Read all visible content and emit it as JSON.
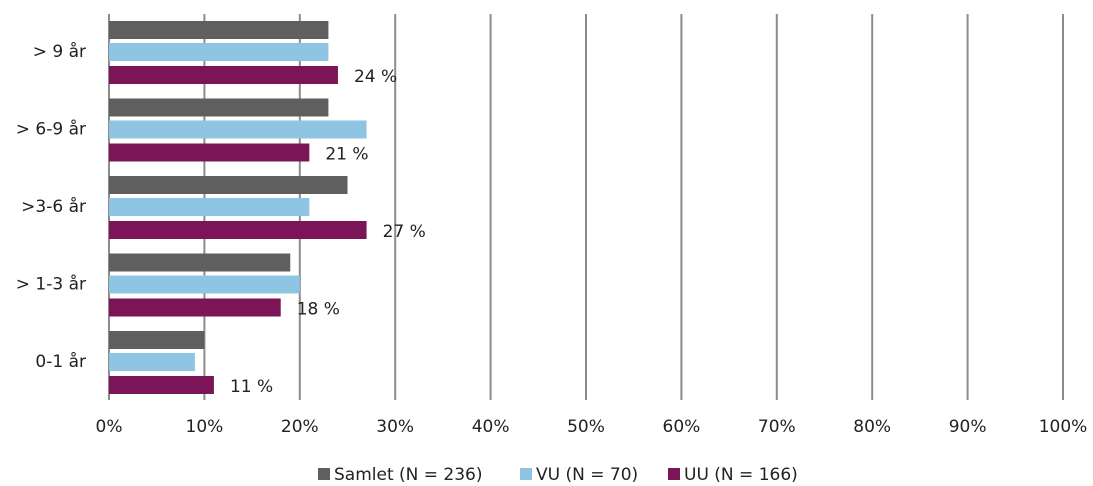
{
  "chart_data": {
    "type": "bar",
    "orientation": "horizontal",
    "categories": [
      "> 9 år",
      "> 6-9 år",
      ">3-6 år",
      "> 1-3 år",
      "0-1 år"
    ],
    "series": [
      {
        "name": "Samlet (N = 236)",
        "color": "#5f5f5f",
        "values": [
          23,
          23,
          25,
          19,
          10
        ]
      },
      {
        "name": "VU (N = 70)",
        "color": "#8ec5e3",
        "values": [
          23,
          27,
          21,
          20,
          9
        ]
      },
      {
        "name": "UU (N = 166)",
        "color": "#7b1558",
        "values": [
          24,
          21,
          27,
          18,
          11
        ],
        "value_labels": [
          "24 %",
          "21 %",
          "27 %",
          "18 %",
          "11 %"
        ]
      }
    ],
    "xlim": [
      0,
      100
    ],
    "xticks": [
      {
        "value": 0,
        "label": "0%"
      },
      {
        "value": 10,
        "label": "10%"
      },
      {
        "value": 20,
        "label": "20%"
      },
      {
        "value": 30,
        "label": "30%"
      },
      {
        "value": 40,
        "label": "40%"
      },
      {
        "value": 50,
        "label": "50%"
      },
      {
        "value": 60,
        "label": "60%"
      },
      {
        "value": 70,
        "label": "70%"
      },
      {
        "value": 80,
        "label": "80%"
      },
      {
        "value": 90,
        "label": "90%"
      },
      {
        "value": 100,
        "label": "100%"
      }
    ],
    "grid": true,
    "legend": "bottom"
  }
}
